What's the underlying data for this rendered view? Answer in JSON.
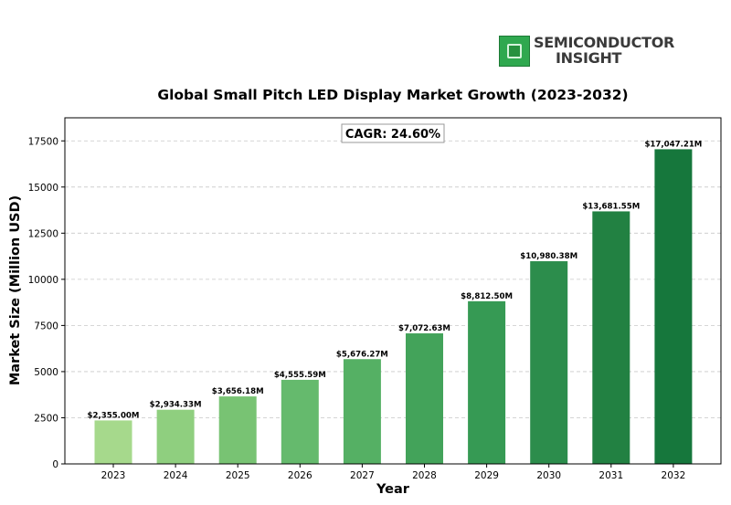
{
  "brand": {
    "line1": "SEMICONDUCTOR",
    "line2": "INSIGHT",
    "icon": "chip-icon",
    "color": "#2fa84f"
  },
  "chart_data": {
    "type": "bar",
    "title": "Global Small Pitch LED Display Market Growth (2023-2032)",
    "xlabel": "Year",
    "ylabel": "Market Size (Million USD)",
    "annotation": "CAGR: 24.60%",
    "categories": [
      "2023",
      "2024",
      "2025",
      "2026",
      "2027",
      "2028",
      "2029",
      "2030",
      "2031",
      "2032"
    ],
    "values": [
      2355.0,
      2934.33,
      3656.18,
      4555.59,
      5676.27,
      7072.63,
      8812.5,
      10980.38,
      13681.55,
      17047.21
    ],
    "value_labels": [
      "$2,355.00M",
      "$2,934.33M",
      "$3,656.18M",
      "$4,555.59M",
      "$5,676.27M",
      "$7,072.63M",
      "$8,812.50M",
      "$10,980.38M",
      "$13,681.55M",
      "$17,047.21M"
    ],
    "yticks": [
      0,
      2500,
      5000,
      7500,
      10000,
      12500,
      15000,
      17500
    ],
    "ylim": [
      0,
      18750
    ],
    "grid": true,
    "colors": [
      "#a6d98c",
      "#8fcf7f",
      "#78c373",
      "#65ba6d",
      "#55b064",
      "#43a35a",
      "#369a54",
      "#2c8d4c",
      "#228142",
      "#16773c"
    ]
  }
}
